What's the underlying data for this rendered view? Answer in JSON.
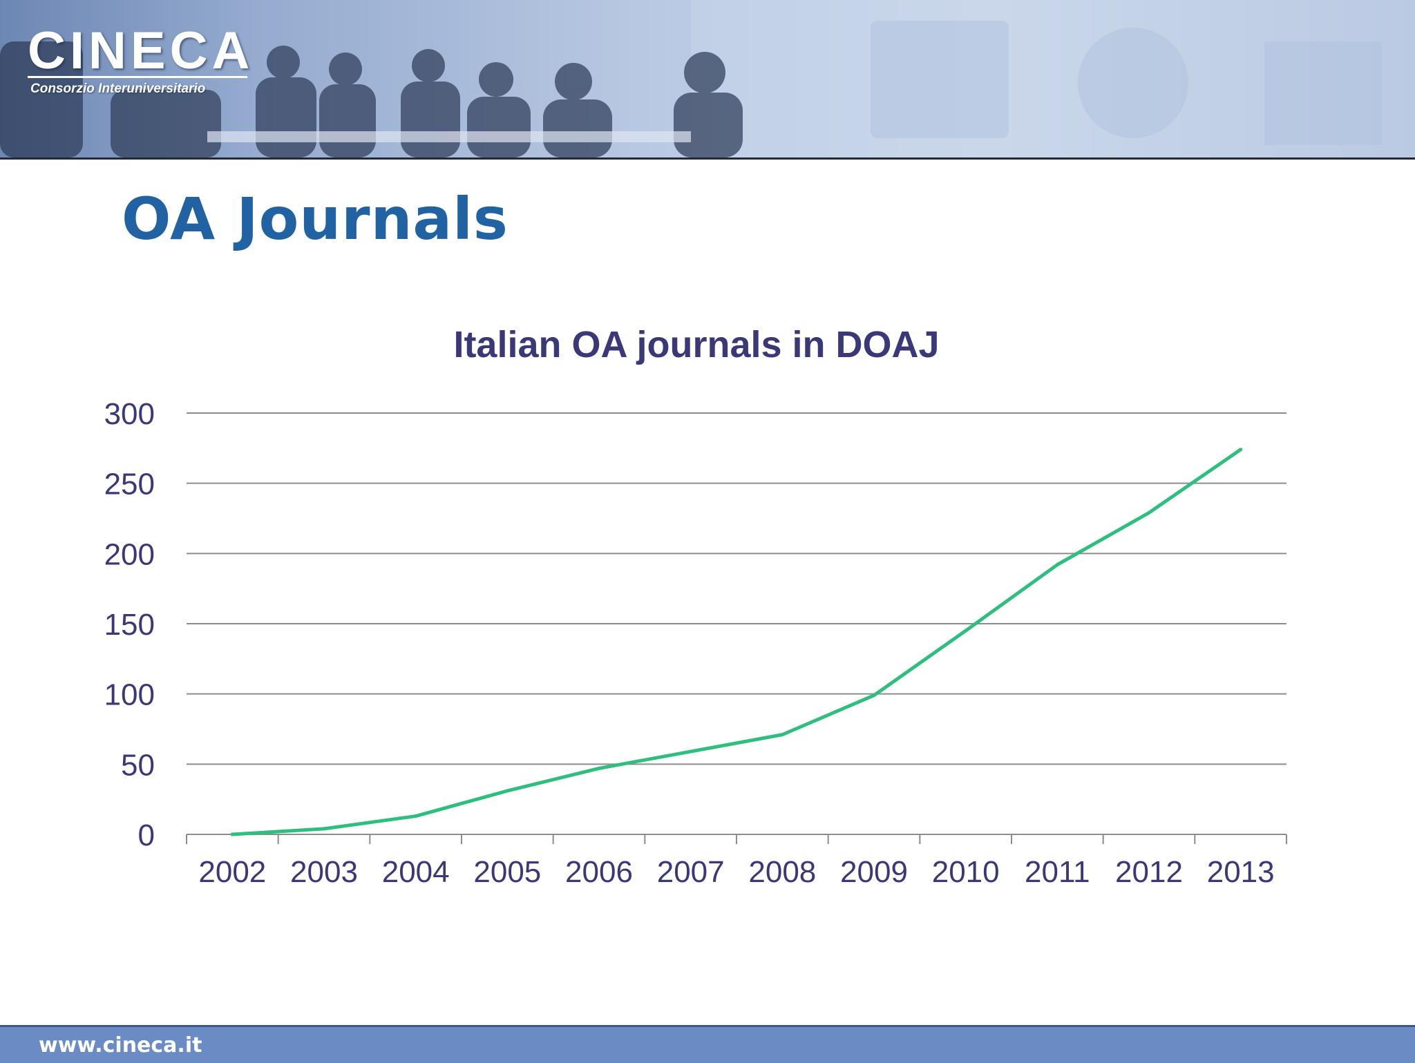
{
  "slide": {
    "title": "OA Journals",
    "footer_url": "www.cineca.it"
  },
  "header": {
    "logo_text": "CINECA",
    "logo_subtitle": "Consorzio Interuniversitario"
  },
  "colors": {
    "title": "#2162a2",
    "chart_text": "#3b3878",
    "series_line": "#2ebf7e",
    "gridline": "#8c8c8c",
    "footer": "#6a8bc3"
  },
  "chart_data": {
    "type": "line",
    "title": "Italian OA journals in DOAJ",
    "xlabel": "",
    "ylabel": "",
    "categories": [
      "2002",
      "2003",
      "2004",
      "2005",
      "2006",
      "2007",
      "2008",
      "2009",
      "2010",
      "2011",
      "2012",
      "2013"
    ],
    "series": [
      {
        "values": [
          0,
          4,
          13,
          31,
          47,
          59,
          71,
          99,
          145,
          192,
          229,
          274
        ]
      }
    ],
    "ylim": [
      0,
      300
    ],
    "yticks": [
      0,
      50,
      100,
      150,
      200,
      250,
      300
    ],
    "grid": true,
    "legend": "none"
  }
}
